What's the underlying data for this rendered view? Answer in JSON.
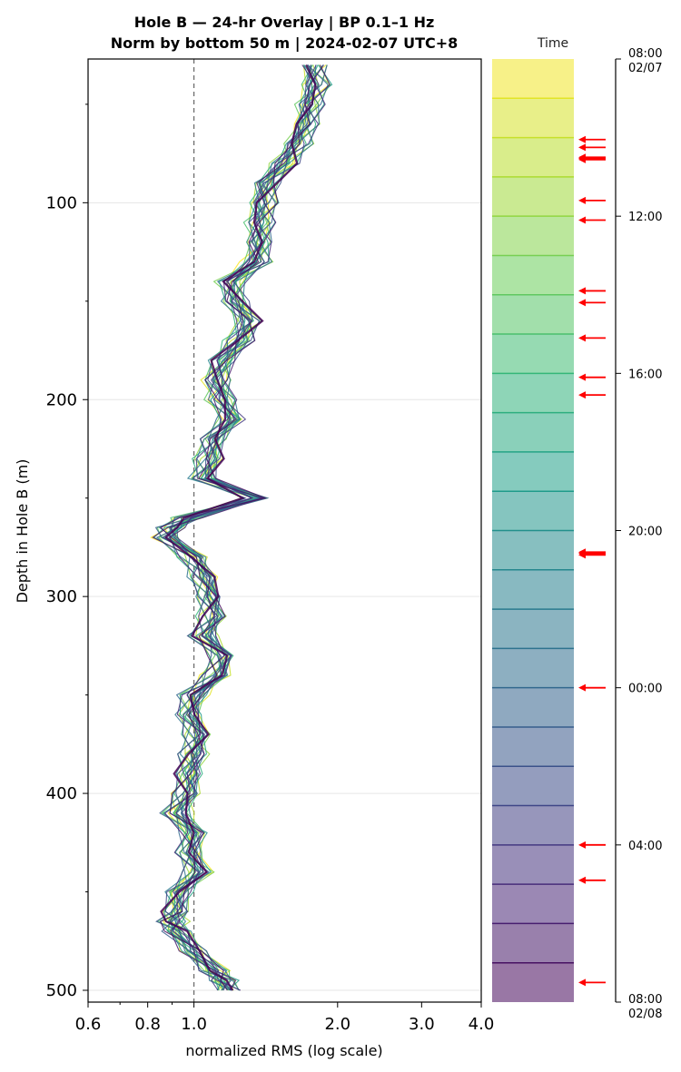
{
  "chart_data": {
    "type": "line",
    "title_line1": "Hole B — 24-hr Overlay  |  BP 0.1–1 Hz",
    "title_line2": "Norm by bottom 50 m  |  2024-02-07 UTC+8",
    "xlabel": "normalized RMS  (log scale)",
    "ylabel": "Depth in Hole B (m)",
    "x_scale": "log",
    "xlim": [
      0.6,
      4.0
    ],
    "ylim": [
      506,
      27
    ],
    "x_ticks": [
      0.6,
      0.8,
      1.0,
      2.0,
      3.0,
      4.0
    ],
    "x_tick_labels": [
      "0.6",
      "0.8",
      "1.0",
      "2.0",
      "3.0",
      "4.0"
    ],
    "y_ticks": [
      100,
      200,
      300,
      400,
      500
    ],
    "y_tick_labels": [
      "100",
      "200",
      "300",
      "400",
      "500"
    ],
    "reference_line_x": 1.0,
    "grid": "horizontal",
    "depth": [
      30,
      40,
      50,
      60,
      70,
      80,
      90,
      100,
      110,
      120,
      130,
      140,
      150,
      160,
      170,
      180,
      190,
      200,
      210,
      220,
      230,
      240,
      250,
      260,
      265,
      270,
      280,
      290,
      300,
      310,
      320,
      330,
      340,
      350,
      360,
      370,
      380,
      390,
      400,
      410,
      420,
      430,
      440,
      450,
      460,
      465,
      470,
      480,
      490,
      495,
      500
    ],
    "mean_profile": [
      1.78,
      1.8,
      1.75,
      1.72,
      1.65,
      1.55,
      1.42,
      1.4,
      1.38,
      1.37,
      1.36,
      1.2,
      1.22,
      1.3,
      1.25,
      1.15,
      1.12,
      1.15,
      1.2,
      1.1,
      1.08,
      1.05,
      1.35,
      0.98,
      0.9,
      0.88,
      1.0,
      1.05,
      1.08,
      1.1,
      1.05,
      1.15,
      1.12,
      1.0,
      0.98,
      1.02,
      1.0,
      0.98,
      0.97,
      0.92,
      1.0,
      0.98,
      1.02,
      0.93,
      0.92,
      0.9,
      0.92,
      1.0,
      1.1,
      1.15,
      1.18
    ],
    "series_count": 25,
    "colorbar": {
      "title": "Time",
      "colormap": "viridis (reversed)",
      "tick_labels": [
        {
          "line1": "08:00",
          "line2": "02/07"
        },
        {
          "line1": "12:00",
          "line2": ""
        },
        {
          "line1": "16:00",
          "line2": ""
        },
        {
          "line1": "20:00",
          "line2": ""
        },
        {
          "line1": "00:00",
          "line2": ""
        },
        {
          "line1": "04:00",
          "line2": ""
        },
        {
          "line1": "08:00",
          "line2": "02/08"
        }
      ],
      "tick_hours": [
        0,
        4,
        8,
        12,
        16,
        20,
        24
      ],
      "marker_color": "#ff0000",
      "marker_hours": [
        2.05,
        2.25,
        2.5,
        2.56,
        3.6,
        4.1,
        5.9,
        6.2,
        7.1,
        8.1,
        8.55,
        12.55,
        12.62,
        16.0,
        20.0,
        20.9,
        23.5
      ],
      "emphasized_marker_hours": [
        2.53,
        12.58
      ]
    }
  }
}
